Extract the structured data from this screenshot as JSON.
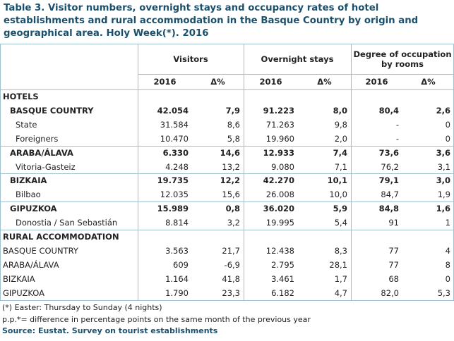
{
  "title": "Table 3. Visitor numbers, overnight stays and occupancy rates of hotel establishments and rural accommodation in the Basque Country by origin and geographical area. Holy Week(*). 2016",
  "table": {
    "header_groups": [
      "Visitors",
      "Overnight stays",
      "Degree of occupation by rooms"
    ],
    "sub_headers": [
      "2016",
      "Δ%",
      "2016",
      "Δ%",
      "2016",
      "Δ%"
    ],
    "sections": [
      {
        "title": "HOTELS",
        "groups": [
          {
            "label": "BASQUE COUNTRY",
            "values": [
              "42.054",
              "7,9",
              "91.223",
              "8,0",
              "80,4",
              "2,6"
            ],
            "children": [
              {
                "label": "State",
                "values": [
                  "31.584",
                  "8,6",
                  "71.263",
                  "9,8",
                  "-",
                  "0"
                ]
              },
              {
                "label": "Foreigners",
                "values": [
                  "10.470",
                  "5,8",
                  "19.960",
                  "2,0",
                  "-",
                  "0"
                ]
              }
            ]
          },
          {
            "label": "ARABA/ÁLAVA",
            "values": [
              "6.330",
              "14,6",
              "12.933",
              "7,4",
              "73,6",
              "3,6"
            ],
            "children": [
              {
                "label": "Vitoria-Gasteiz",
                "values": [
                  "4.248",
                  "13,2",
                  "9.080",
                  "7,1",
                  "76,2",
                  "3,1"
                ]
              }
            ]
          },
          {
            "label": "BIZKAIA",
            "values": [
              "19.735",
              "12,2",
              "42.270",
              "10,1",
              "79,1",
              "3,0"
            ],
            "children": [
              {
                "label": "Bilbao",
                "values": [
                  "12.035",
                  "15,6",
                  "26.008",
                  "10,0",
                  "84,7",
                  "1,9"
                ]
              }
            ]
          },
          {
            "label": "GIPUZKOA",
            "values": [
              "15.989",
              "0,8",
              "36.020",
              "5,9",
              "84,8",
              "1,6"
            ],
            "children": [
              {
                "label": "Donostia / San Sebastián",
                "values": [
                  "8.814",
                  "3,2",
                  "19.995",
                  "5,4",
                  "91",
                  "1"
                ]
              }
            ]
          }
        ]
      },
      {
        "title": "RURAL ACCOMMODATION",
        "rows": [
          {
            "label": "BASQUE COUNTRY",
            "values": [
              "3.563",
              "21,7",
              "12.438",
              "8,3",
              "77",
              "4"
            ]
          },
          {
            "label": "ARABA/ÁLAVA",
            "values": [
              "609",
              "-6,9",
              "2.795",
              "28,1",
              "77",
              "8"
            ]
          },
          {
            "label": "BIZKAIA",
            "values": [
              "1.164",
              "41,8",
              "3.461",
              "1,7",
              "68",
              "0"
            ]
          },
          {
            "label": "GIPUZKOA",
            "values": [
              "1.790",
              "23,3",
              "6.182",
              "4,7",
              "82,0",
              "5,3"
            ]
          }
        ]
      }
    ]
  },
  "notes": [
    "(*) Easter: Thursday to Sunday (4 nights)",
    "p.p.*= difference in percentage points on the same month of the previous year"
  ],
  "source": "Source: Eustat. Survey on tourist establishments"
}
